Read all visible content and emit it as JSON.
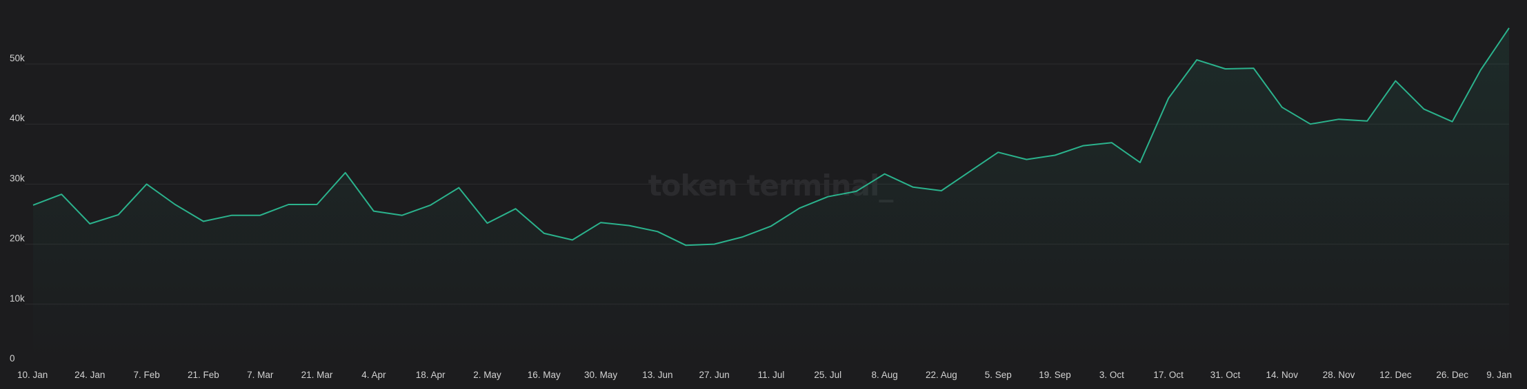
{
  "watermark": "token terminal_",
  "colors": {
    "background": "#1c1c1e",
    "line": "#2bb38d",
    "grid": "#2c2c2f",
    "text": "#d2d2d2"
  },
  "chart_data": {
    "type": "area",
    "title": "",
    "xlabel": "",
    "ylabel": "",
    "ylim": [
      0,
      60000
    ],
    "grid": true,
    "y_ticks": [
      {
        "value": 0,
        "label": "0"
      },
      {
        "value": 10000,
        "label": "10k"
      },
      {
        "value": 20000,
        "label": "20k"
      },
      {
        "value": 30000,
        "label": "30k"
      },
      {
        "value": 40000,
        "label": "40k"
      },
      {
        "value": 50000,
        "label": "50k"
      }
    ],
    "x_tick_labels": [
      "10. Jan",
      "24. Jan",
      "7. Feb",
      "21. Feb",
      "7. Mar",
      "21. Mar",
      "4. Apr",
      "18. Apr",
      "2. May",
      "16. May",
      "30. May",
      "13. Jun",
      "27. Jun",
      "11. Jul",
      "25. Jul",
      "8. Aug",
      "22. Aug",
      "5. Sep",
      "19. Sep",
      "3. Oct",
      "17. Oct",
      "31. Oct",
      "14. Nov",
      "28. Nov",
      "12. Dec",
      "26. Dec",
      "9. Jan"
    ],
    "series": [
      {
        "values": [
          26500,
          28300,
          23400,
          24900,
          30000,
          26600,
          23800,
          24800,
          24800,
          26600,
          26600,
          31900,
          25500,
          24800,
          26500,
          29400,
          23500,
          25900,
          21800,
          20700,
          23600,
          23100,
          22100,
          19800,
          20000,
          21200,
          23000,
          26000,
          27900,
          28800,
          31700,
          29500,
          28900,
          32100,
          35300,
          34100,
          34800,
          36400,
          36900,
          33600,
          44300,
          50700,
          49200,
          49300,
          42800,
          40000,
          40800,
          40500,
          47200,
          42500,
          40400,
          49000,
          56000
        ]
      }
    ]
  }
}
